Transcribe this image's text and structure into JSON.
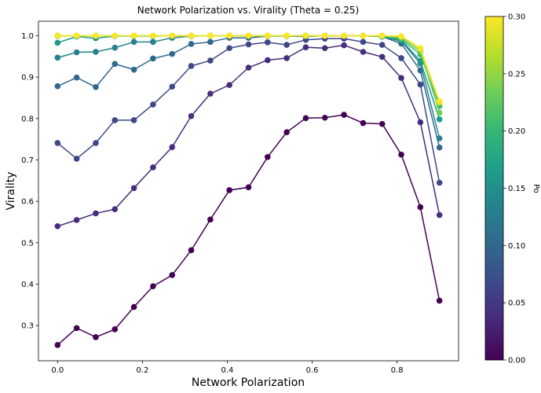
{
  "chart_data": {
    "type": "line",
    "title": "Network Polarization vs. Virality (Theta = 0.25)",
    "xlabel": "Network Polarization",
    "ylabel": "Virality",
    "xlim": [
      -0.045,
      0.945
    ],
    "ylim": [
      0.215,
      1.035
    ],
    "xticks": [
      0.0,
      0.2,
      0.4,
      0.6,
      0.8
    ],
    "xtick_labels": [
      "0.0",
      "0.2",
      "0.4",
      "0.6",
      "0.8"
    ],
    "yticks": [
      0.3,
      0.4,
      0.5,
      0.6,
      0.7,
      0.8,
      0.9,
      1.0
    ],
    "ytick_labels": [
      "0.3",
      "0.4",
      "0.5",
      "0.6",
      "0.7",
      "0.8",
      "0.9",
      "1.0"
    ],
    "grid": false,
    "x": [
      0.0,
      0.045,
      0.09,
      0.135,
      0.18,
      0.225,
      0.27,
      0.315,
      0.36,
      0.405,
      0.45,
      0.495,
      0.54,
      0.585,
      0.63,
      0.675,
      0.72,
      0.765,
      0.81,
      0.855,
      0.9
    ],
    "colormap": "viridis",
    "colorbar": {
      "label": "Po",
      "range": [
        0.0,
        0.3
      ],
      "ticks": [
        0.0,
        0.05,
        0.1,
        0.15,
        0.2,
        0.25,
        0.3
      ],
      "tick_labels": [
        "0.00",
        "0.05",
        "0.10",
        "0.15",
        "0.20",
        "0.25",
        "0.30"
      ],
      "stops": [
        "#440154",
        "#482878",
        "#3e4989",
        "#31688e",
        "#26828e",
        "#1f9e89",
        "#35b779",
        "#6ece58",
        "#b5de2b",
        "#fde725"
      ]
    },
    "series": [
      {
        "po": 0.0,
        "color": "#440154",
        "values": [
          0.253,
          0.294,
          0.272,
          0.291,
          0.345,
          0.395,
          0.422,
          0.482,
          0.556,
          0.627,
          0.634,
          0.707,
          0.767,
          0.801,
          0.802,
          0.809,
          0.789,
          0.787,
          0.713,
          0.586,
          0.36
        ]
      },
      {
        "po": 0.02,
        "color": "#472d7b",
        "values": [
          0.54,
          0.555,
          0.571,
          0.581,
          0.632,
          0.682,
          0.731,
          0.806,
          0.86,
          0.881,
          0.923,
          0.941,
          0.946,
          0.972,
          0.97,
          0.977,
          0.961,
          0.949,
          0.898,
          0.791,
          0.567
        ]
      },
      {
        "po": 0.04,
        "color": "#3f4788",
        "values": [
          0.741,
          0.703,
          0.741,
          0.796,
          0.796,
          0.834,
          0.877,
          0.927,
          0.94,
          0.97,
          0.979,
          0.984,
          0.978,
          0.99,
          0.993,
          0.993,
          0.985,
          0.978,
          0.946,
          0.882,
          0.645
        ]
      },
      {
        "po": 0.07,
        "color": "#31688e",
        "values": [
          0.878,
          0.899,
          0.876,
          0.932,
          0.918,
          0.945,
          0.956,
          0.98,
          0.985,
          0.995,
          0.995,
          0.999,
          0.999,
          0.998,
          1.0,
          1.0,
          1.0,
          0.998,
          0.981,
          0.916,
          0.73
        ]
      },
      {
        "po": 0.1,
        "color": "#26828e",
        "values": [
          0.947,
          0.96,
          0.961,
          0.971,
          0.985,
          0.985,
          0.995,
          0.999,
          1.0,
          1.0,
          1.0,
          1.0,
          1.0,
          1.0,
          1.0,
          1.0,
          1.0,
          0.998,
          0.987,
          0.933,
          0.752
        ]
      },
      {
        "po": 0.14,
        "color": "#1f9a8a",
        "values": [
          0.983,
          0.998,
          0.994,
          0.999,
          0.999,
          0.999,
          1.0,
          1.0,
          1.0,
          1.0,
          1.0,
          1.0,
          1.0,
          1.0,
          1.0,
          1.0,
          1.0,
          0.998,
          0.99,
          0.939,
          0.798
        ]
      },
      {
        "po": 0.18,
        "color": "#35b779",
        "values": [
          0.999,
          1.0,
          1.0,
          1.0,
          1.0,
          1.0,
          1.0,
          1.0,
          1.0,
          1.0,
          1.0,
          1.0,
          1.0,
          1.0,
          1.0,
          1.0,
          1.0,
          0.999,
          0.992,
          0.955,
          0.83
        ]
      },
      {
        "po": 0.22,
        "color": "#6ece58",
        "values": [
          1.0,
          1.0,
          1.0,
          1.0,
          1.0,
          1.0,
          1.0,
          1.0,
          1.0,
          1.0,
          1.0,
          1.0,
          1.0,
          1.0,
          1.0,
          1.0,
          1.0,
          1.0,
          0.995,
          0.962,
          0.814
        ]
      },
      {
        "po": 0.26,
        "color": "#b5de2b",
        "values": [
          1.0,
          1.0,
          1.0,
          1.0,
          1.0,
          1.0,
          1.0,
          1.0,
          1.0,
          1.0,
          1.0,
          1.0,
          1.0,
          1.0,
          1.0,
          1.0,
          1.0,
          1.0,
          0.998,
          0.967,
          0.838
        ]
      },
      {
        "po": 0.3,
        "color": "#fde725",
        "values": [
          1.0,
          1.0,
          1.0,
          1.0,
          1.0,
          1.0,
          1.0,
          1.0,
          1.0,
          1.0,
          1.0,
          1.0,
          1.0,
          1.0,
          1.0,
          1.0,
          1.0,
          1.0,
          0.999,
          0.97,
          0.842
        ]
      }
    ]
  }
}
